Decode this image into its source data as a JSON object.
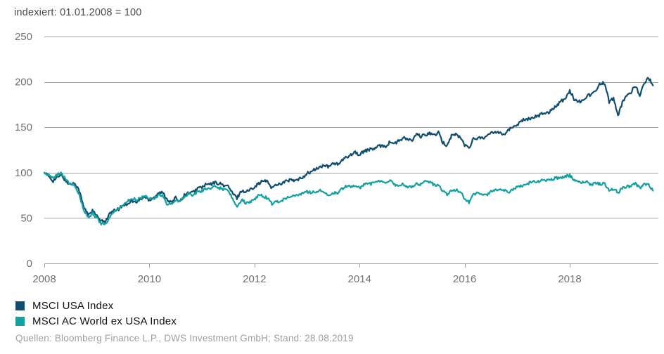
{
  "header": {
    "note": "indexiert: 01.01.2008 = 100"
  },
  "footer": {
    "source": "Quellen: Bloomberg Finance L.P., DWS Investment GmbH; Stand: 28.08.2019"
  },
  "legend": [
    {
      "label": "MSCI USA Index",
      "color": "#114D6E"
    },
    {
      "label": "MSCI AC World ex USA Index",
      "color": "#14A09E"
    }
  ],
  "colors": {
    "grid": "#9e9e9e",
    "axis_text": "#707070",
    "note_text": "#4a4a4a",
    "source_text": "#9e9e9e",
    "background": "#ffffff"
  },
  "chart_data": {
    "type": "line",
    "title": "indexiert: 01.01.2008 = 100",
    "xlabel": "",
    "ylabel": "",
    "grid": "horizontal",
    "legend_position": "bottom-left",
    "ylim": [
      0,
      250
    ],
    "y_ticks": [
      0,
      50,
      100,
      150,
      200,
      250
    ],
    "x_tick_labels": [
      "2008",
      "2010",
      "2012",
      "2014",
      "2016",
      "2018"
    ],
    "x_tick_years": [
      2008,
      2010,
      2012,
      2014,
      2016,
      2018
    ],
    "x_start_year": 2008,
    "x_end_year_fraction": 2019.667,
    "points_per_year": 12,
    "x_note": "monthly index values, Jan 2008 - Aug 2019, indexed 01.01.2008 = 100",
    "series": [
      {
        "name": "MSCI USA Index",
        "color": "#114D6E",
        "jitter": 1.8,
        "values": [
          100,
          96,
          91,
          95,
          97,
          90,
          87,
          89,
          80,
          62,
          54,
          58,
          52,
          46,
          47,
          55,
          58,
          60,
          64,
          66,
          69,
          67,
          71,
          73,
          70,
          73,
          77,
          78,
          71,
          67,
          72,
          69,
          75,
          78,
          78,
          83,
          84,
          87,
          87,
          89,
          88,
          86,
          85,
          77,
          72,
          80,
          79,
          81,
          85,
          88,
          91,
          90,
          83,
          87,
          88,
          90,
          92,
          91,
          92,
          95,
          99,
          101,
          104,
          106,
          108,
          106,
          111,
          109,
          113,
          117,
          120,
          123,
          119,
          124,
          125,
          126,
          128,
          130,
          129,
          134,
          132,
          135,
          138,
          137,
          135,
          142,
          140,
          141,
          144,
          141,
          144,
          133,
          130,
          141,
          142,
          139,
          130,
          128,
          137,
          138,
          139,
          139,
          144,
          145,
          145,
          142,
          147,
          150,
          153,
          158,
          158,
          160,
          162,
          163,
          166,
          166,
          170,
          174,
          179,
          181,
          191,
          181,
          178,
          180,
          185,
          186,
          192,
          198,
          199,
          178,
          182,
          162,
          177,
          185,
          189,
          196,
          185,
          198,
          205,
          196
        ]
      },
      {
        "name": "MSCI AC World ex USA Index",
        "color": "#14A09E",
        "jitter": 1.6,
        "values": [
          100,
          97,
          93,
          98,
          99,
          92,
          88,
          86,
          76,
          58,
          51,
          55,
          50,
          44,
          43,
          52,
          58,
          60,
          65,
          68,
          72,
          70,
          72,
          74,
          71,
          71,
          75,
          75,
          66,
          65,
          70,
          68,
          74,
          77,
          75,
          79,
          80,
          82,
          82,
          85,
          83,
          81,
          81,
          71,
          63,
          70,
          67,
          67,
          71,
          75,
          74,
          72,
          65,
          68,
          69,
          71,
          74,
          74,
          75,
          78,
          79,
          78,
          79,
          81,
          79,
          75,
          78,
          77,
          82,
          85,
          85,
          86,
          83,
          87,
          87,
          88,
          90,
          91,
          90,
          91,
          87,
          86,
          87,
          84,
          84,
          88,
          87,
          90,
          89,
          87,
          86,
          80,
          76,
          81,
          81,
          79,
          71,
          67,
          76,
          78,
          77,
          75,
          79,
          81,
          82,
          81,
          78,
          81,
          84,
          85,
          87,
          89,
          90,
          90,
          92,
          92,
          93,
          94,
          94,
          96,
          97,
          92,
          89,
          90,
          89,
          87,
          89,
          87,
          88,
          81,
          82,
          78,
          83,
          85,
          85,
          88,
          83,
          87,
          87,
          80
        ]
      }
    ]
  }
}
